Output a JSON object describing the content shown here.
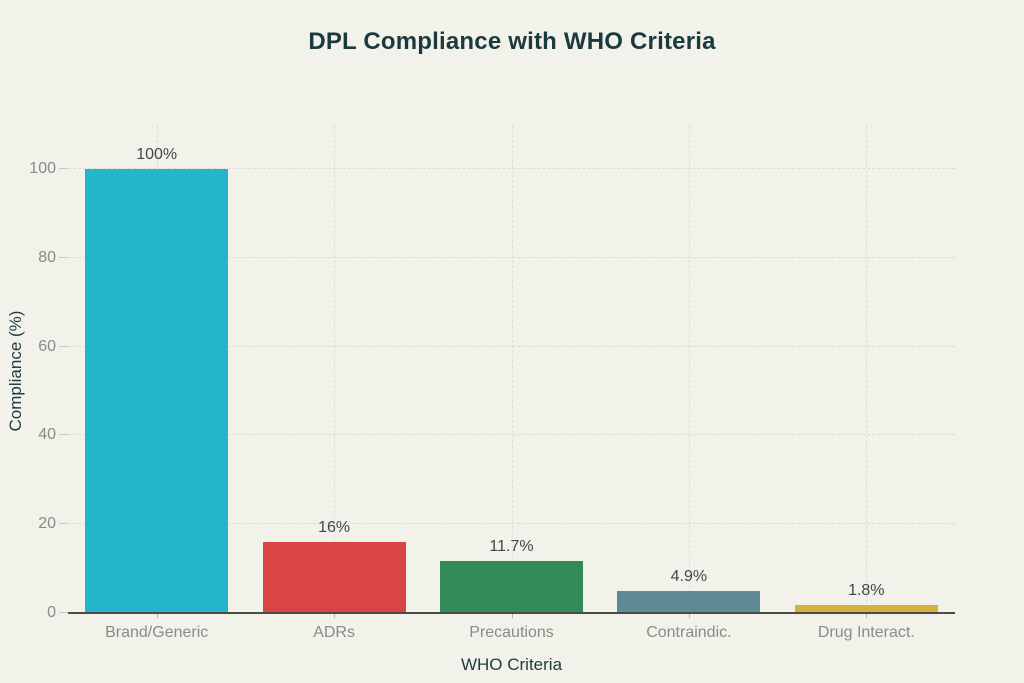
{
  "page": {
    "background": "#F2F1EA"
  },
  "chart_data": {
    "type": "bar",
    "title": "DPL Compliance with WHO Criteria",
    "xlabel": "WHO Criteria",
    "ylabel": "Compliance (%)",
    "categories": [
      "Brand/Generic",
      "ADRs",
      "Precautions",
      "Contraindic.",
      "Drug Interact."
    ],
    "values": [
      100,
      16,
      11.7,
      4.9,
      1.8
    ],
    "value_labels": [
      "100%",
      "16%",
      "11.7%",
      "4.9%",
      "1.8%"
    ],
    "bar_colors": [
      "#22B5CB",
      "#D94545",
      "#318A58",
      "#5D8A93",
      "#D3B23E"
    ],
    "yticks": [
      0,
      20,
      40,
      60,
      80,
      100
    ],
    "ylim": [
      0,
      100
    ],
    "grid": true,
    "legend": "none",
    "colors": {
      "title": "#1B3A3F",
      "axis_title": "#1C3D40",
      "tick_label": "#888C86",
      "value_label": "#3E4A4A",
      "axis_line": "#4A4A46",
      "gridline": "#DDDCD3",
      "background": "#F2F1EA"
    }
  }
}
